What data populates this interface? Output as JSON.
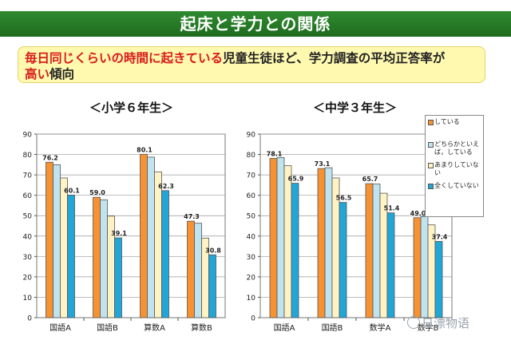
{
  "banner": {
    "title": "起床と学力との関係"
  },
  "note": {
    "highlight1": "毎日同じくらいの時間に起きている",
    "normal1": "児童生徒ほど、学力調査の平均正答率が",
    "highlight2": "高い",
    "normal2": "傾向"
  },
  "charts": [
    {
      "subtitle": "＜小学６年生＞"
    },
    {
      "subtitle": "＜中学３年生＞"
    }
  ],
  "legend": [
    {
      "label": "している",
      "color": "#f79232"
    },
    {
      "label": "どちらかといえば，している",
      "color": "#bfe3ef"
    },
    {
      "label": "あまりしていない",
      "color": "#fff3c4"
    },
    {
      "label": "全くしていない",
      "color": "#22a6d8"
    }
  ],
  "watermark": {
    "text": "日漂物语",
    "icon": "wechat-icon"
  },
  "chart_data": [
    {
      "type": "bar",
      "title": "＜小学６年生＞",
      "categories": [
        "国語A",
        "国語B",
        "算数A",
        "算数B"
      ],
      "ylim": [
        0,
        90
      ],
      "yticks": [
        0,
        10,
        20,
        30,
        40,
        50,
        60,
        70,
        80,
        90
      ],
      "grid": true,
      "series": [
        {
          "name": "している",
          "values": [
            76.2,
            59.0,
            80.1,
            47.3
          ],
          "labels": [
            "76.2",
            "59.0",
            "80.1",
            "47.3"
          ]
        },
        {
          "name": "どちらかといえば，している",
          "values": [
            75.0,
            57.8,
            78.7,
            46.3
          ],
          "labels": [
            "",
            "",
            "",
            ""
          ]
        },
        {
          "name": "あまりしていない",
          "values": [
            68.5,
            49.8,
            71.5,
            39.0
          ],
          "labels": [
            "",
            "",
            "",
            ""
          ]
        },
        {
          "name": "全くしていない",
          "values": [
            60.1,
            39.1,
            62.3,
            30.8
          ],
          "labels": [
            "60.1",
            "39.1",
            "62.3",
            "30.8"
          ]
        }
      ]
    },
    {
      "type": "bar",
      "title": "＜中学３年生＞",
      "categories": [
        "国語A",
        "国語B",
        "数学A",
        "数学B"
      ],
      "ylim": [
        0,
        90
      ],
      "yticks": [
        0,
        10,
        20,
        30,
        40,
        50,
        60,
        70,
        80,
        90
      ],
      "grid": true,
      "series": [
        {
          "name": "している",
          "values": [
            78.1,
            73.1,
            65.7,
            49.0
          ],
          "labels": [
            "78.1",
            "73.1",
            "65.7",
            "49.0"
          ]
        },
        {
          "name": "どちらかといえば，している",
          "values": [
            78.5,
            73.5,
            65.5,
            49.5
          ],
          "labels": [
            "",
            "",
            "",
            ""
          ]
        },
        {
          "name": "あまりしていない",
          "values": [
            74.5,
            68.5,
            61.0,
            45.5
          ],
          "labels": [
            "",
            "",
            "",
            ""
          ]
        },
        {
          "name": "全くしていない",
          "values": [
            65.9,
            56.5,
            51.4,
            37.4
          ],
          "labels": [
            "65.9",
            "56.5",
            "51.4",
            "37.4"
          ]
        }
      ]
    }
  ]
}
